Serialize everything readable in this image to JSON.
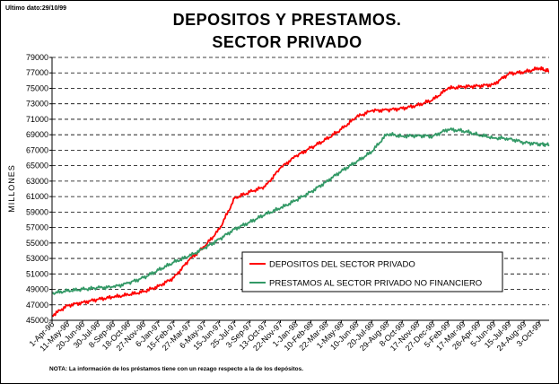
{
  "header": {
    "update_note": "Ultimo dato:29/10/99",
    "title_line1": "DEPOSITOS Y PRESTAMOS.",
    "title_line2": "SECTOR PRIVADO"
  },
  "footer": {
    "note": "NOTA: La información de los préstamos tiene con un rezago respecto a la de los depósitos."
  },
  "colors": {
    "depositos": "#ff0000",
    "prestamos": "#339966"
  },
  "chart_data": {
    "type": "line",
    "title": "DEPOSITOS Y PRESTAMOS. SECTOR PRIVADO",
    "ylabel": "MILLONES",
    "xlabel": "",
    "ylim": [
      45000,
      79000
    ],
    "yticks": [
      45000,
      47000,
      49000,
      51000,
      53000,
      55000,
      57000,
      59000,
      61000,
      63000,
      65000,
      67000,
      69000,
      71000,
      73000,
      75000,
      77000,
      79000
    ],
    "x_tick_labels": [
      "1-Apr-96",
      "11-May-96",
      "20-Jun-96",
      "30-Jul-96",
      "8-Sep-96",
      "18-Oct-96",
      "27-Nov-96",
      "6-Jan-97",
      "15-Feb-97",
      "27-Mar-97",
      "6-May-97",
      "15-Jun-97",
      "25-Jul-97",
      "3-Sep-97",
      "13-Oct-97",
      "22-Nov-97",
      "1-Jan-98",
      "10-Feb-98",
      "22-Mar-98",
      "1-May-98",
      "10-Jun-98",
      "20-Jul-98",
      "29-Aug-98",
      "8-Oct-98",
      "17-Nov-98",
      "27-Dec-98",
      "5-Feb-99",
      "17-Mar-99",
      "26-Apr-99",
      "5-Jun-99",
      "15-Jul-99",
      "24-Aug-99",
      "3-Oct-99"
    ],
    "x_range": [
      "1-Apr-96",
      "29-Oct-99"
    ],
    "grid": "horizontal-dashed",
    "legend_position": "center-right",
    "series": [
      {
        "name": "DEPOSITOS DEL SECTOR PRIVADO",
        "x": [
          "1-Apr-96",
          "11-May-96",
          "20-Jun-96",
          "30-Jul-96",
          "8-Sep-96",
          "18-Oct-96",
          "27-Nov-96",
          "6-Jan-97",
          "15-Feb-97",
          "27-Mar-97",
          "6-May-97",
          "15-Jun-97",
          "25-Jul-97",
          "3-Sep-97",
          "13-Oct-97",
          "22-Nov-97",
          "1-Jan-98",
          "10-Feb-98",
          "22-Mar-98",
          "1-May-98",
          "10-Jun-98",
          "20-Jul-98",
          "29-Aug-98",
          "8-Oct-98",
          "17-Nov-98",
          "27-Dec-98",
          "5-Feb-99",
          "17-Mar-99",
          "26-Apr-99",
          "5-Jun-99",
          "15-Jul-99",
          "24-Aug-99",
          "3-Oct-99",
          "29-Oct-99"
        ],
        "values": [
          45600,
          46900,
          47300,
          47700,
          48000,
          48300,
          48700,
          49400,
          50500,
          52800,
          54500,
          56800,
          60800,
          61600,
          62300,
          64700,
          66200,
          67300,
          68400,
          69700,
          71300,
          72100,
          72200,
          72400,
          72800,
          73500,
          75000,
          75200,
          75300,
          75500,
          76900,
          77100,
          77600,
          77200
        ]
      },
      {
        "name": "PRESTAMOS AL SECTOR PRIVADO NO FINANCIERO",
        "x": [
          "1-Apr-96",
          "11-May-96",
          "20-Jun-96",
          "30-Jul-96",
          "8-Sep-96",
          "18-Oct-96",
          "27-Nov-96",
          "6-Jan-97",
          "15-Feb-97",
          "27-Mar-97",
          "6-May-97",
          "15-Jun-97",
          "25-Jul-97",
          "3-Sep-97",
          "13-Oct-97",
          "22-Nov-97",
          "1-Jan-98",
          "10-Feb-98",
          "22-Mar-98",
          "1-May-98",
          "10-Jun-98",
          "20-Jul-98",
          "29-Aug-98",
          "8-Oct-98",
          "17-Nov-98",
          "27-Dec-98",
          "5-Feb-99",
          "17-Mar-99",
          "26-Apr-99",
          "5-Jun-99",
          "15-Jul-99",
          "24-Aug-99",
          "3-Oct-99",
          "29-Oct-99"
        ],
        "values": [
          48500,
          48800,
          49000,
          49200,
          49300,
          49800,
          50500,
          51500,
          52500,
          53300,
          54300,
          55500,
          56800,
          57700,
          58700,
          59500,
          60500,
          61600,
          62900,
          64300,
          65500,
          66800,
          69100,
          68800,
          68900,
          68800,
          69700,
          69500,
          69000,
          68600,
          68500,
          68000,
          67800,
          67700
        ]
      }
    ]
  }
}
